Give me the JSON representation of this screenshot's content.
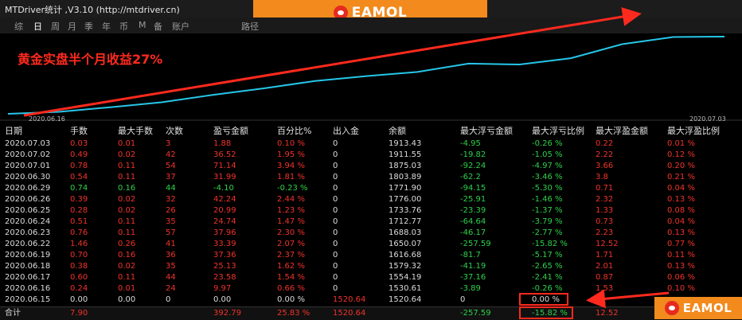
{
  "app": {
    "title": "MTDriver统计 ,V3.10 (http://mtdriver.cn)",
    "brand": "EAMOL"
  },
  "tabs": [
    {
      "label": "综",
      "active": false
    },
    {
      "label": "日",
      "active": true
    },
    {
      "label": "周",
      "active": false
    },
    {
      "label": "月",
      "active": false
    },
    {
      "label": "季",
      "active": false
    },
    {
      "label": "年",
      "active": false
    },
    {
      "label": "币",
      "active": false
    },
    {
      "label": "M",
      "active": false
    },
    {
      "label": "备",
      "active": false
    },
    {
      "label": "账户",
      "active": false
    }
  ],
  "path_label": "路径",
  "chart": {
    "caption": "黄金实盘半个月收益27%",
    "start_date": "2020.06.16",
    "end_date": "2020.07.03",
    "line_color": "#26c6e8",
    "caption_color": "#ff2a1e"
  },
  "table": {
    "columns": [
      "日期",
      "手数",
      "最大手数",
      "次数",
      "盈亏金额",
      "百分比%",
      "出入金",
      "余额",
      "最大浮亏金额",
      "最大浮亏比例",
      "最大浮盈金额",
      "最大浮盈比例"
    ],
    "rows": [
      [
        "2020.07.03",
        "0.03",
        "0.01",
        "3",
        "1.88",
        "0.10 %",
        "0",
        "1913.43",
        "-4.95",
        "-0.26 %",
        "0.22",
        "0.01 %"
      ],
      [
        "2020.07.02",
        "0.49",
        "0.02",
        "42",
        "36.52",
        "1.95 %",
        "0",
        "1911.55",
        "-19.82",
        "-1.05 %",
        "2.22",
        "0.12 %"
      ],
      [
        "2020.07.01",
        "0.78",
        "0.11",
        "54",
        "71.14",
        "3.94 %",
        "0",
        "1875.03",
        "-92.24",
        "-4.97 %",
        "3.66",
        "0.20 %"
      ],
      [
        "2020.06.30",
        "0.54",
        "0.11",
        "37",
        "31.99",
        "1.81 %",
        "0",
        "1803.89",
        "-62.2",
        "-3.46 %",
        "3.8",
        "0.21 %"
      ],
      [
        "2020.06.29",
        "0.74",
        "0.16",
        "44",
        "-4.10",
        "-0.23 %",
        "0",
        "1771.90",
        "-94.15",
        "-5.30 %",
        "0.71",
        "0.04 %"
      ],
      [
        "2020.06.26",
        "0.39",
        "0.02",
        "32",
        "42.24",
        "2.44 %",
        "0",
        "1776.00",
        "-25.91",
        "-1.46 %",
        "2.32",
        "0.13 %"
      ],
      [
        "2020.06.25",
        "0.28",
        "0.02",
        "26",
        "20.99",
        "1.23 %",
        "0",
        "1733.76",
        "-23.39",
        "-1.37 %",
        "1.33",
        "0.08 %"
      ],
      [
        "2020.06.24",
        "0.51",
        "0.11",
        "35",
        "24.74",
        "1.47 %",
        "0",
        "1712.77",
        "-64.64",
        "-3.79 %",
        "0.73",
        "0.04 %"
      ],
      [
        "2020.06.23",
        "0.76",
        "0.11",
        "57",
        "37.96",
        "2.30 %",
        "0",
        "1688.03",
        "-46.17",
        "-2.77 %",
        "2.23",
        "0.13 %"
      ],
      [
        "2020.06.22",
        "1.46",
        "0.26",
        "41",
        "33.39",
        "2.07 %",
        "0",
        "1650.07",
        "-257.59",
        "-15.82 %",
        "12.52",
        "0.77 %"
      ],
      [
        "2020.06.19",
        "0.70",
        "0.16",
        "36",
        "37.36",
        "2.37 %",
        "0",
        "1616.68",
        "-81.7",
        "-5.17 %",
        "1.71",
        "0.11 %"
      ],
      [
        "2020.06.18",
        "0.38",
        "0.02",
        "35",
        "25.13",
        "1.62 %",
        "0",
        "1579.32",
        "-41.19",
        "-2.65 %",
        "2.01",
        "0.13 %"
      ],
      [
        "2020.06.17",
        "0.60",
        "0.11",
        "44",
        "23.58",
        "1.54 %",
        "0",
        "1554.19",
        "-37.16",
        "-2.41 %",
        "0.87",
        "0.06 %"
      ],
      [
        "2020.06.16",
        "0.24",
        "0.01",
        "24",
        "9.97",
        "0.66 %",
        "0",
        "1530.61",
        "-3.89",
        "-0.26 %",
        "1.53",
        "0.10 %"
      ],
      [
        "2020.06.15",
        "0.00",
        "0.00",
        "0",
        "0.00",
        "0.00 %",
        "1520.64",
        "1520.64",
        "0",
        "0.00 %",
        "",
        ""
      ]
    ],
    "total": [
      "合计",
      "7.90",
      "",
      "",
      "392.79",
      "25.83 %",
      "1520.64",
      "",
      "-257.59",
      "-15.82 %",
      "12.52",
      ""
    ]
  }
}
